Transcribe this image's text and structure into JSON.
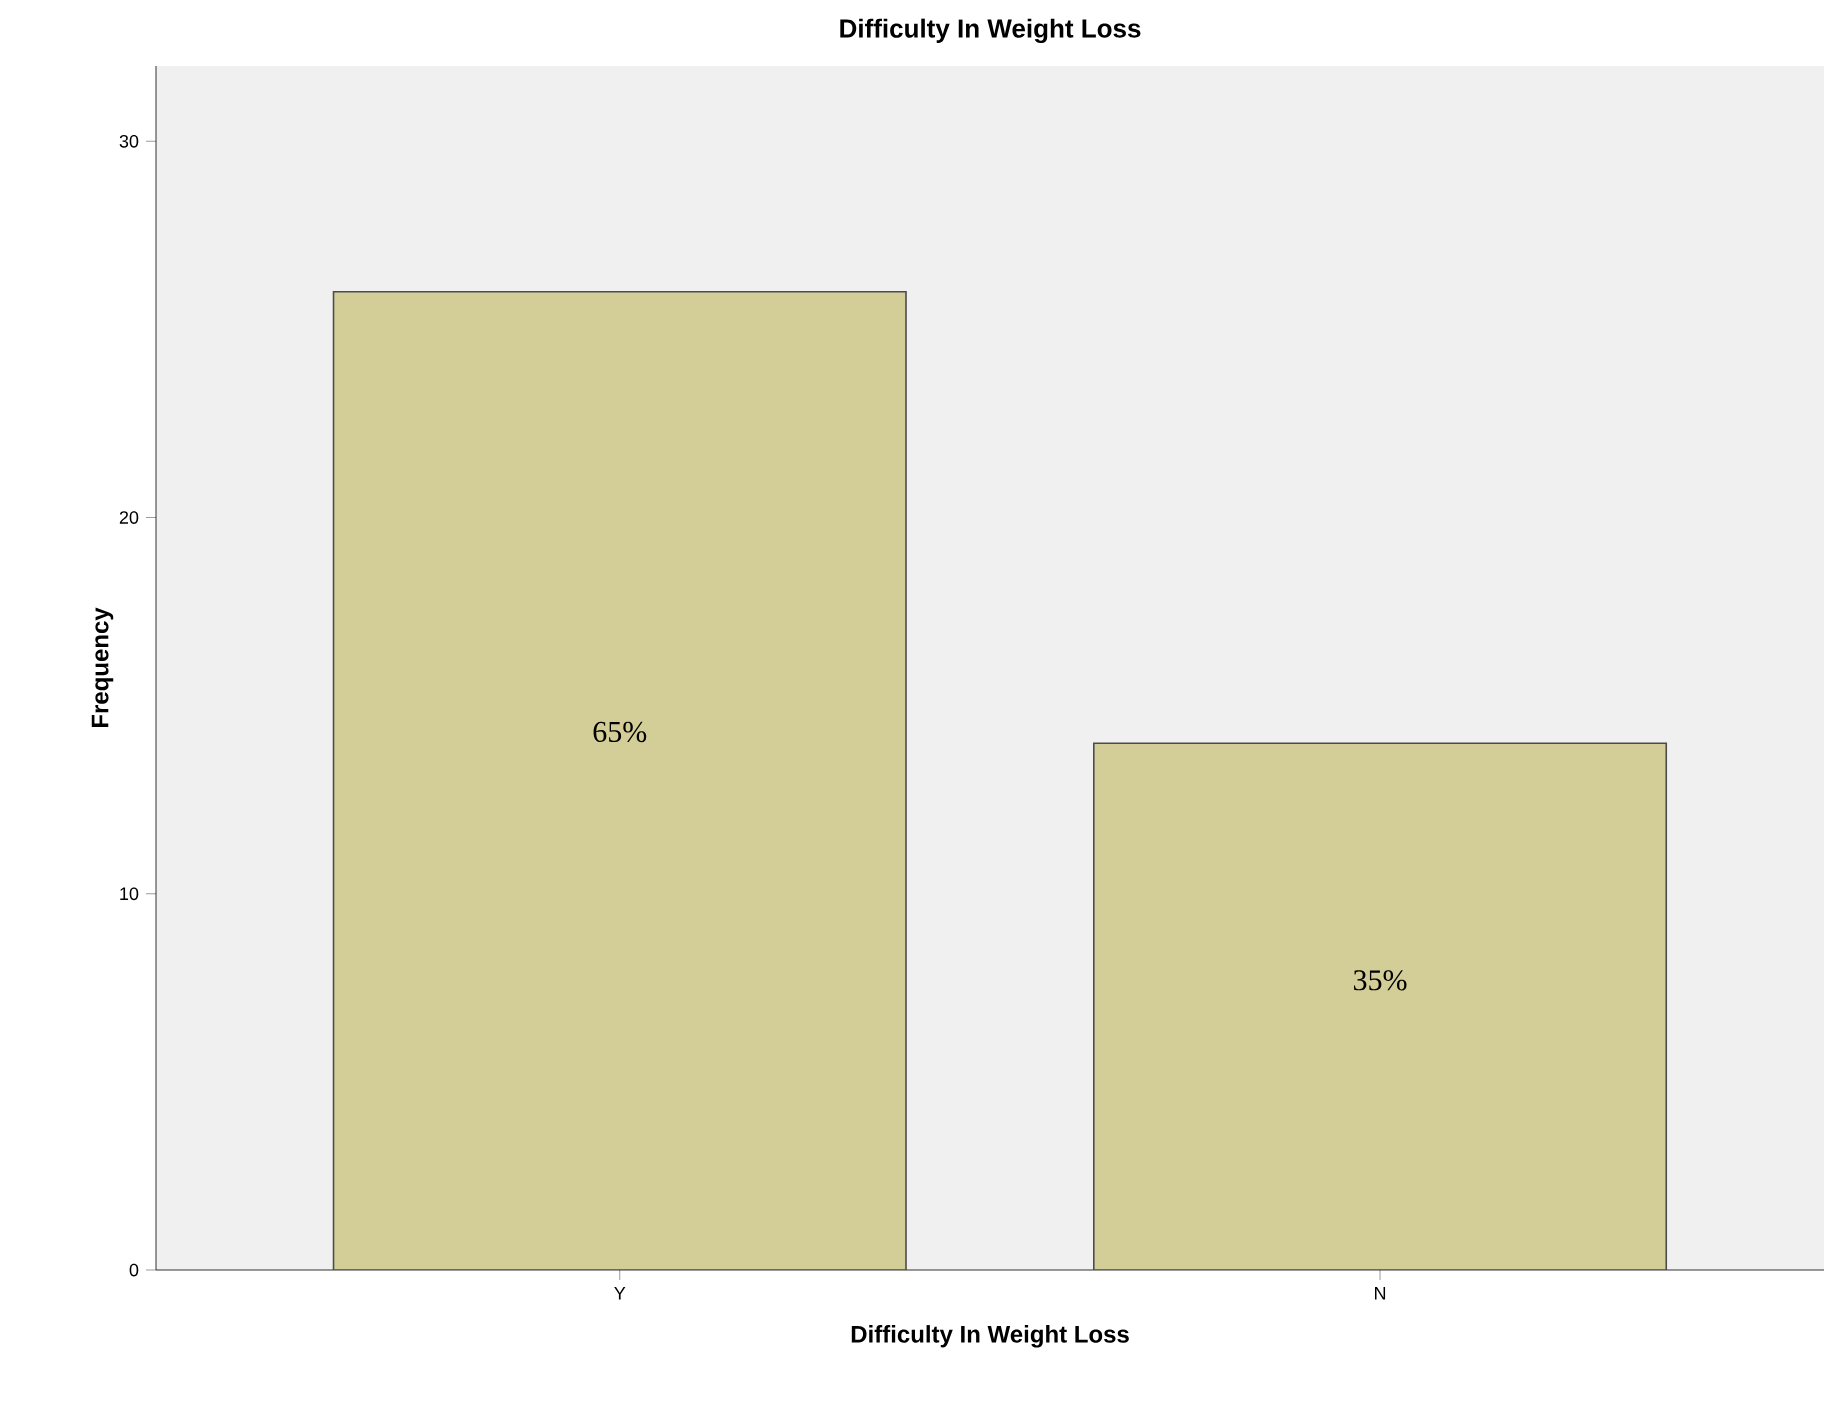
{
  "chart_data": {
    "type": "bar",
    "title": "Difficulty In Weight Loss",
    "xlabel": "Difficulty In Weight Loss",
    "ylabel": "Frequency",
    "categories": [
      "Y",
      "N"
    ],
    "values": [
      26,
      14
    ],
    "color": "#d3ce97",
    "annotations": [
      "65%",
      "35%"
    ],
    "ylim": [
      0,
      32
    ],
    "yticks": [
      0,
      10,
      20,
      30
    ],
    "grid": false
  }
}
